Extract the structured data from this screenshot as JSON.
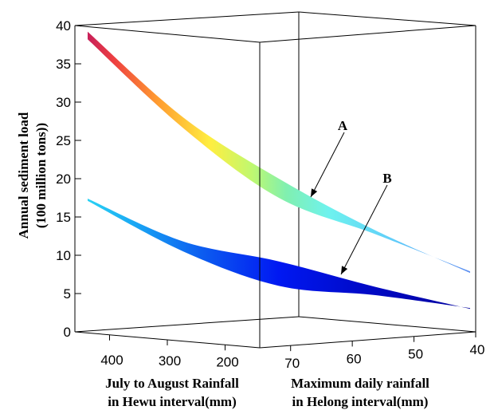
{
  "chart_data": {
    "type": "surface3d",
    "z_axis": {
      "label_line1": "Annual sediment load",
      "label_line2": "(100 million tons))",
      "ticks": [
        0,
        5,
        10,
        15,
        20,
        25,
        30,
        35,
        40
      ],
      "range": [
        0,
        40
      ]
    },
    "x_axis": {
      "label_line1": "July to August Rainfall",
      "label_line2": "in Hewu interval(mm)",
      "ticks": [
        400,
        300,
        200
      ],
      "range": [
        460,
        140
      ]
    },
    "y_axis": {
      "label_line1": "Maximum daily rainfall",
      "label_line2": "in Helong interval(mm)",
      "ticks": [
        70,
        60,
        50,
        40
      ],
      "range": [
        75,
        40
      ]
    },
    "surfaces": [
      {
        "label": "A",
        "colormap": "jet-high",
        "back_edge": [
          [
            0,
            39.2
          ],
          [
            0.25,
            28.0
          ],
          [
            0.5,
            20.0
          ],
          [
            0.75,
            13.3
          ],
          [
            1,
            7.7
          ]
        ],
        "front_edge": [
          [
            0,
            38.2
          ],
          [
            0.25,
            26.6
          ],
          [
            0.5,
            17.5
          ],
          [
            0.75,
            12.8
          ],
          [
            1,
            7.9
          ]
        ]
      },
      {
        "label": "B",
        "colormap": "jet-low",
        "back_edge": [
          [
            0,
            17.4
          ],
          [
            0.25,
            11.8
          ],
          [
            0.5,
            9.2
          ],
          [
            0.75,
            5.9
          ],
          [
            1,
            3.0
          ]
        ],
        "front_edge": [
          [
            0,
            17.1
          ],
          [
            0.25,
            10.5
          ],
          [
            0.5,
            6.0
          ],
          [
            0.75,
            4.8
          ],
          [
            1,
            3.1
          ]
        ]
      }
    ],
    "annotations": [
      {
        "text": "A",
        "target_surface": "A"
      },
      {
        "text": "B",
        "target_surface": "B"
      }
    ],
    "grid": false
  }
}
